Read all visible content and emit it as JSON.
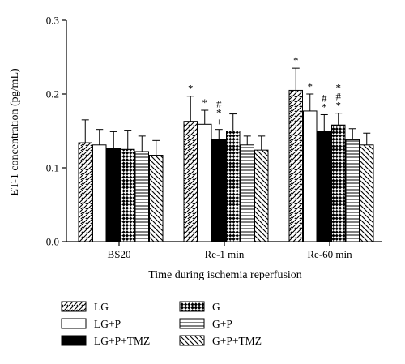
{
  "chart_data": {
    "type": "bar",
    "title": "",
    "xlabel": "Time during ischemia reperfusion",
    "ylabel": "ET-1 concentration (pg/mL)",
    "ylim": [
      0,
      0.3
    ],
    "yticks": [
      "0.0",
      "0.1",
      "0.2",
      "0.3"
    ],
    "categories": [
      "BS20",
      "Re-1 min",
      "Re-60 min"
    ],
    "legend_position": "bottom",
    "grid": false,
    "series": [
      {
        "name": "LG",
        "pattern": "hatch-right",
        "values": [
          0.134,
          0.163,
          0.205
        ],
        "errors": [
          0.031,
          0.034,
          0.03
        ],
        "annotations": [
          "",
          "*",
          "*"
        ]
      },
      {
        "name": "LG+P",
        "pattern": "white",
        "values": [
          0.131,
          0.159,
          0.177
        ],
        "errors": [
          0.021,
          0.019,
          0.023
        ],
        "annotations": [
          "",
          "*",
          "*"
        ]
      },
      {
        "name": "LG+P+TMZ",
        "pattern": "black",
        "values": [
          0.126,
          0.138,
          0.149
        ],
        "errors": [
          0.023,
          0.014,
          0.023
        ],
        "annotations": [
          "",
          "#\n*\n+",
          "#\n*"
        ]
      },
      {
        "name": "G",
        "pattern": "checker",
        "values": [
          0.125,
          0.15,
          0.158
        ],
        "errors": [
          0.026,
          0.023,
          0.016
        ],
        "annotations": [
          "",
          "",
          "*\n#\n*"
        ]
      },
      {
        "name": "G+P",
        "pattern": "horizontal",
        "values": [
          0.122,
          0.131,
          0.138
        ],
        "errors": [
          0.021,
          0.012,
          0.015
        ],
        "annotations": [
          "",
          "",
          ""
        ]
      },
      {
        "name": "G+P+TMZ",
        "pattern": "hatch-left",
        "values": [
          0.117,
          0.124,
          0.131
        ],
        "errors": [
          0.02,
          0.019,
          0.016
        ],
        "annotations": [
          "",
          "",
          ""
        ]
      }
    ]
  }
}
